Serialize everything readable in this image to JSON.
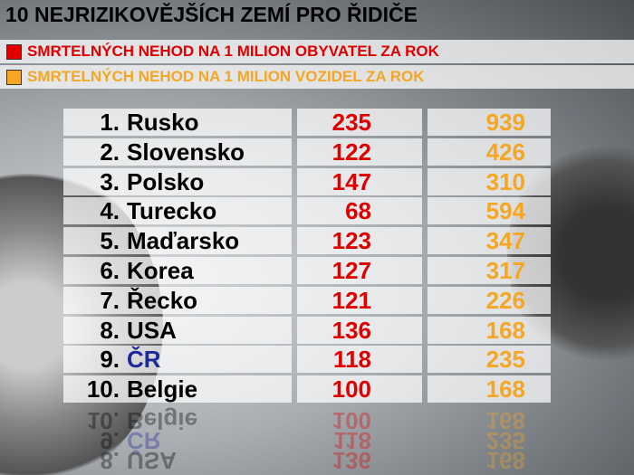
{
  "title": "10 NEJRIZIKOVĚJŠÍCH ZEMÍ PRO ŘIDIČE",
  "legend": [
    {
      "label": "SMRTELNÝCH NEHOD NA 1 MILION OBYVATEL ZA ROK",
      "color": "#e00000"
    },
    {
      "label": "SMRTELNÝCH NEHOD NA 1 MILION VOZIDEL ZA ROK",
      "color": "#f5a623"
    }
  ],
  "table": {
    "rows": [
      [
        "1.",
        "Rusko",
        235,
        939
      ],
      [
        "2.",
        "Slovensko",
        122,
        426
      ],
      [
        "3.",
        "Polsko",
        147,
        310
      ],
      [
        "4.",
        "Turecko",
        68,
        594
      ],
      [
        "5.",
        "Maďarsko",
        123,
        347
      ],
      [
        "6.",
        "Korea",
        127,
        317
      ],
      [
        "7.",
        "Řecko",
        121,
        226
      ],
      [
        "8.",
        "USA",
        136,
        168
      ],
      [
        "9.",
        "ČR",
        118,
        235
      ],
      [
        "10.",
        "Belgie",
        100,
        168
      ]
    ]
  }
}
